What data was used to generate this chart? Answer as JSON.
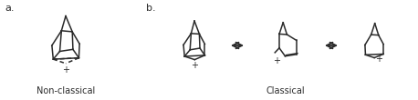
{
  "background_color": "#ffffff",
  "line_color": "#2a2a2a",
  "label_a": "a.",
  "label_b": "b.",
  "label_nonclassical": "Non-classical",
  "label_classical": "Classical",
  "figsize": [
    4.58,
    1.1
  ],
  "dpi": 100
}
